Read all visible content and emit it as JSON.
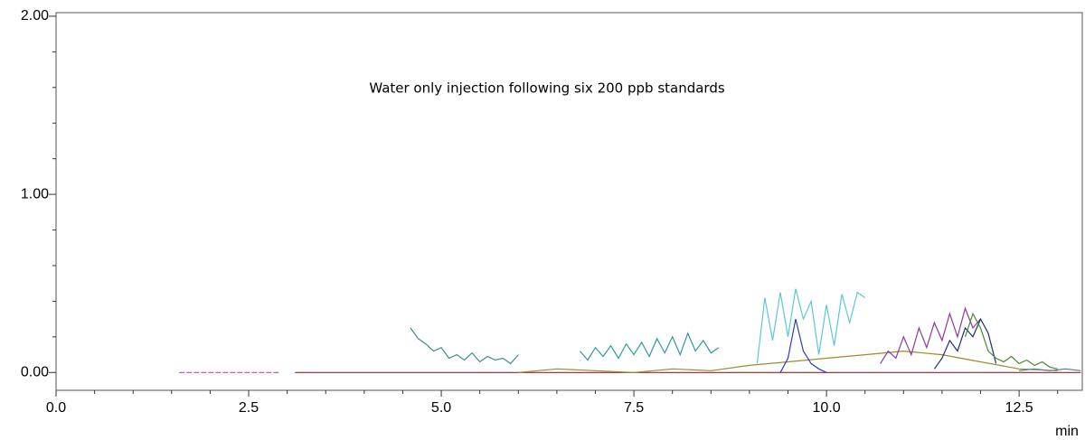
{
  "chart_data": {
    "type": "line",
    "annotation": "Water only injection following six 200 ppb standards",
    "xlabel": "min",
    "xlim": [
      0,
      13.32
    ],
    "ylim": [
      -0.1,
      2.02
    ],
    "xticks": [
      {
        "value": 0,
        "label": "0.0"
      },
      2.5,
      {
        "value": 5,
        "label": "5.0"
      },
      7.5,
      {
        "value": 10,
        "label": "10.0"
      },
      12.5
    ],
    "yticks": [
      {
        "value": 0,
        "label": "0.00"
      },
      {
        "value": 1,
        "label": "1.00"
      },
      {
        "value": 2,
        "label": "2.00"
      }
    ],
    "xminorticks": [
      0.5,
      1,
      1.5,
      2,
      3,
      3.5,
      4,
      4.5,
      5.5,
      6,
      6.5,
      7,
      8,
      8.5,
      9,
      9.5,
      10.5,
      11,
      11.5,
      12,
      13
    ],
    "yminorticks": [
      0.2,
      0.4,
      0.6,
      0.8,
      1.2,
      1.4,
      1.6,
      1.8
    ],
    "series": [
      {
        "color": "#c040c0",
        "dashed": true,
        "x": [
          1.6,
          2.9
        ],
        "values": [
          0,
          0
        ]
      },
      {
        "color": "#a02020",
        "x": [
          3.1,
          13.3
        ],
        "values": [
          0,
          0
        ]
      },
      {
        "color": "#9a8a30",
        "x": [
          6.0,
          6.5,
          7.0,
          7.5,
          8.0,
          8.5,
          9.0,
          9.5,
          10.0,
          10.5,
          11.0,
          11.5,
          12.0,
          12.5,
          13.0
        ],
        "values": [
          0.0,
          0.02,
          0.01,
          0.0,
          0.02,
          0.01,
          0.04,
          0.06,
          0.08,
          0.1,
          0.12,
          0.1,
          0.06,
          0.02,
          0.01
        ]
      },
      {
        "color": "#3a8f8a",
        "x": [
          4.6,
          4.7,
          4.8,
          4.9,
          5.0,
          5.1,
          5.2,
          5.3,
          5.4,
          5.5,
          5.6,
          5.7,
          5.8,
          5.9,
          6.0
        ],
        "values": [
          0.25,
          0.19,
          0.16,
          0.12,
          0.14,
          0.08,
          0.1,
          0.07,
          0.11,
          0.06,
          0.09,
          0.07,
          0.08,
          0.05,
          0.1
        ]
      },
      {
        "color": "#2f9a96",
        "x": [
          6.8,
          6.9,
          7.0,
          7.1,
          7.2,
          7.3,
          7.4,
          7.5,
          7.6,
          7.7,
          7.8,
          7.9,
          8.0,
          8.1,
          8.2,
          8.3,
          8.4,
          8.5,
          8.6
        ],
        "values": [
          0.12,
          0.07,
          0.14,
          0.09,
          0.15,
          0.08,
          0.16,
          0.1,
          0.17,
          0.09,
          0.19,
          0.11,
          0.2,
          0.1,
          0.22,
          0.12,
          0.18,
          0.11,
          0.14
        ]
      },
      {
        "color": "#5cc8d6",
        "x": [
          9.1,
          9.2,
          9.3,
          9.4,
          9.5,
          9.6,
          9.7,
          9.8,
          9.9,
          10.0,
          10.1,
          10.2,
          10.3,
          10.4,
          10.5
        ],
        "values": [
          0.05,
          0.42,
          0.18,
          0.45,
          0.2,
          0.47,
          0.3,
          0.4,
          0.1,
          0.38,
          0.15,
          0.44,
          0.28,
          0.45,
          0.42
        ]
      },
      {
        "color": "#2b3fbf",
        "x": [
          9.4,
          9.5,
          9.6,
          9.7,
          9.8,
          9.9,
          10.0
        ],
        "values": [
          0.0,
          0.08,
          0.3,
          0.12,
          0.05,
          0.02,
          0.0
        ]
      },
      {
        "color": "#8e3a9a",
        "x": [
          10.7,
          10.8,
          10.9,
          11.0,
          11.1,
          11.2,
          11.3,
          11.4,
          11.5,
          11.6,
          11.7,
          11.8,
          11.9,
          12.0
        ],
        "values": [
          0.05,
          0.12,
          0.08,
          0.2,
          0.1,
          0.25,
          0.14,
          0.28,
          0.18,
          0.33,
          0.2,
          0.36,
          0.25,
          0.3
        ]
      },
      {
        "color": "#1f2d7a",
        "x": [
          11.4,
          11.5,
          11.6,
          11.7,
          11.8,
          11.9,
          12.0,
          12.1,
          12.2
        ],
        "values": [
          0.02,
          0.08,
          0.18,
          0.12,
          0.25,
          0.2,
          0.3,
          0.22,
          0.05
        ]
      },
      {
        "color": "#4a8a2a",
        "x": [
          11.8,
          11.9,
          12.0,
          12.1,
          12.2,
          12.3,
          12.4,
          12.5,
          12.6,
          12.7,
          12.8,
          12.9,
          13.0
        ],
        "values": [
          0.2,
          0.33,
          0.25,
          0.12,
          0.08,
          0.06,
          0.09,
          0.05,
          0.07,
          0.04,
          0.06,
          0.03,
          0.02
        ]
      },
      {
        "color": "#4a7a9a",
        "x": [
          12.5,
          12.7,
          12.9,
          13.1,
          13.3
        ],
        "values": [
          0.01,
          0.02,
          0.01,
          0.02,
          0.01
        ]
      }
    ]
  }
}
